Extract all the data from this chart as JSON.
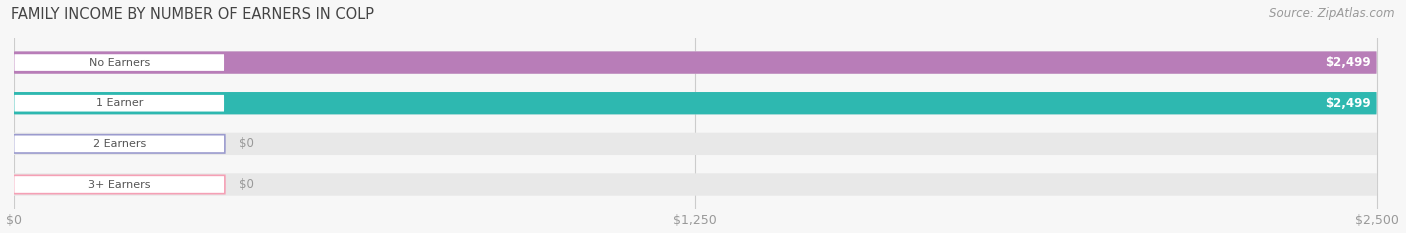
{
  "title": "FAMILY INCOME BY NUMBER OF EARNERS IN COLP",
  "source": "Source: ZipAtlas.com",
  "categories": [
    "No Earners",
    "1 Earner",
    "2 Earners",
    "3+ Earners"
  ],
  "values": [
    2499,
    2499,
    0,
    0
  ],
  "max_value": 2500,
  "bar_colors": [
    "#b87db8",
    "#2eb8b0",
    "#9b9bce",
    "#f5a0b5"
  ],
  "label_colors": [
    "#b87db8",
    "#2eb8b0",
    "#9b9bce",
    "#f5a0b5"
  ],
  "background_color": "#f7f7f7",
  "bar_bg_color": "#e8e8e8",
  "value_labels": [
    "$2,499",
    "$2,499",
    "$0",
    "$0"
  ],
  "xtick_labels": [
    "$0",
    "$1,250",
    "$2,500"
  ],
  "xtick_values": [
    0,
    1250,
    2500
  ],
  "figsize": [
    14.06,
    2.33
  ],
  "dpi": 100
}
